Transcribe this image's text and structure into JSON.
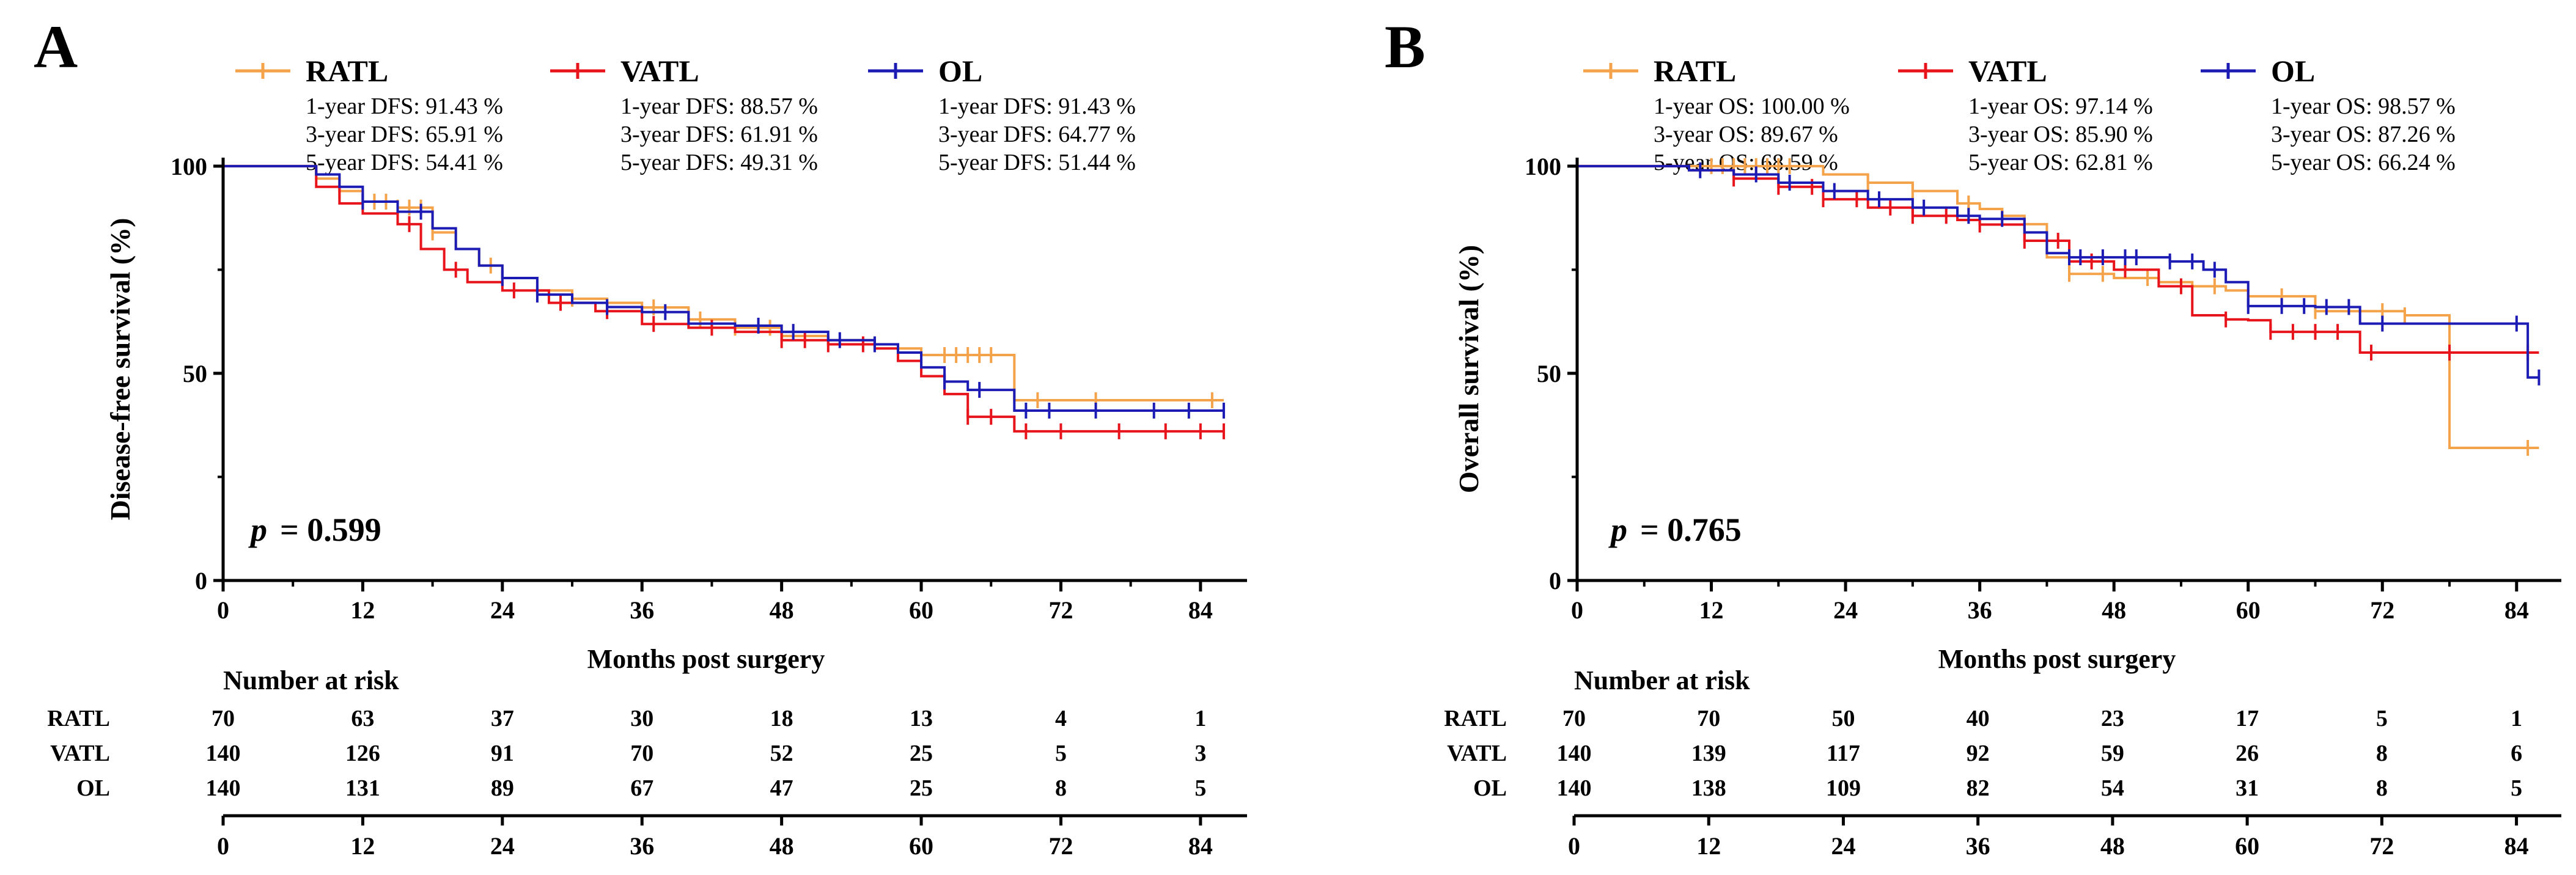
{
  "colors": {
    "RATL": "#F5A34B",
    "VATL": "#E8141C",
    "OL": "#1C1CB4"
  },
  "chart_data": [
    {
      "type": "line",
      "panel": "A",
      "xlabel": "Months post surgery",
      "ylabel": "Disease-free survival (%)",
      "xlim": [
        0,
        90
      ],
      "ylim": [
        0,
        105
      ],
      "xticks": [
        "0",
        "12",
        "24",
        "36",
        "48",
        "60",
        "72",
        "84"
      ],
      "yticks": [
        "0",
        "50",
        "100"
      ],
      "pvalue_label": "p",
      "pvalue": "= 0.599",
      "series": [
        {
          "name": "RATL",
          "stats": [
            "1-year DFS: 91.43 %",
            "3-year DFS: 65.91 %",
            "5-year DFS: 54.41 %"
          ],
          "points": [
            [
              0,
              100
            ],
            [
              6,
              100
            ],
            [
              8,
              97
            ],
            [
              10,
              94
            ],
            [
              12,
              91.43
            ],
            [
              15,
              90
            ],
            [
              18,
              84
            ],
            [
              20,
              80
            ],
            [
              22,
              76
            ],
            [
              24,
              73
            ],
            [
              27,
              70
            ],
            [
              30,
              68
            ],
            [
              33,
              67
            ],
            [
              36,
              65.91
            ],
            [
              40,
              63
            ],
            [
              44,
              61
            ],
            [
              48,
              59
            ],
            [
              52,
              58
            ],
            [
              56,
              57
            ],
            [
              58,
              56
            ],
            [
              60,
              54.41
            ],
            [
              67,
              54.41
            ],
            [
              68,
              43.5
            ],
            [
              86,
              43.5
            ]
          ],
          "censor": [
            10,
            12,
            13,
            14,
            15,
            16,
            17,
            18,
            23,
            30,
            37,
            41,
            44,
            47,
            62,
            63,
            64,
            65,
            66,
            70,
            75,
            85
          ]
        },
        {
          "name": "VATL",
          "stats": [
            "1-year DFS: 88.57 %",
            "3-year DFS: 61.91 %",
            "5-year DFS: 49.31 %"
          ],
          "points": [
            [
              0,
              100
            ],
            [
              6,
              100
            ],
            [
              8,
              95
            ],
            [
              10,
              91
            ],
            [
              12,
              88.57
            ],
            [
              15,
              86
            ],
            [
              17,
              80
            ],
            [
              19,
              75
            ],
            [
              21,
              72
            ],
            [
              24,
              70
            ],
            [
              28,
              67
            ],
            [
              32,
              65
            ],
            [
              36,
              61.91
            ],
            [
              40,
              61
            ],
            [
              44,
              60
            ],
            [
              48,
              58
            ],
            [
              52,
              57
            ],
            [
              56,
              56
            ],
            [
              58,
              53
            ],
            [
              60,
              49.31
            ],
            [
              62,
              45
            ],
            [
              64,
              39.5
            ],
            [
              67,
              39.5
            ],
            [
              68,
              36
            ],
            [
              86,
              36
            ]
          ],
          "censor": [
            16,
            20,
            25,
            29,
            33,
            37,
            42,
            48,
            50,
            52,
            55,
            64,
            66,
            69,
            72,
            77,
            81,
            84,
            86
          ]
        },
        {
          "name": "OL",
          "stats": [
            "1-year DFS: 91.43 %",
            "3-year DFS: 64.77 %",
            "5-year DFS: 51.44 %"
          ],
          "points": [
            [
              0,
              100
            ],
            [
              6,
              100
            ],
            [
              8,
              98
            ],
            [
              10,
              95
            ],
            [
              12,
              91.43
            ],
            [
              15,
              89
            ],
            [
              18,
              85
            ],
            [
              20,
              80
            ],
            [
              22,
              76
            ],
            [
              24,
              73
            ],
            [
              27,
              69
            ],
            [
              30,
              67
            ],
            [
              33,
              66
            ],
            [
              36,
              64.77
            ],
            [
              40,
              62
            ],
            [
              44,
              61.5
            ],
            [
              48,
              60
            ],
            [
              52,
              58
            ],
            [
              56,
              57
            ],
            [
              58,
              55
            ],
            [
              60,
              51.44
            ],
            [
              62,
              48
            ],
            [
              64,
              46
            ],
            [
              67,
              46
            ],
            [
              68,
              41
            ],
            [
              86,
              41
            ]
          ],
          "censor": [
            12,
            17,
            24,
            27,
            33,
            38,
            46,
            49,
            53,
            56,
            62,
            65,
            69,
            71,
            75,
            80,
            83,
            86
          ]
        }
      ],
      "risk_table": {
        "title": "Number at risk",
        "rows": [
          {
            "name": "RATL",
            "values": [
              "70",
              "63",
              "37",
              "30",
              "18",
              "13",
              "4",
              "1"
            ]
          },
          {
            "name": "VATL",
            "values": [
              "140",
              "126",
              "91",
              "70",
              "52",
              "25",
              "5",
              "3"
            ]
          },
          {
            "name": "OL",
            "values": [
              "140",
              "131",
              "89",
              "67",
              "47",
              "25",
              "8",
              "5"
            ]
          }
        ],
        "xticks": [
          "0",
          "12",
          "24",
          "36",
          "48",
          "60",
          "72",
          "84"
        ]
      }
    },
    {
      "type": "line",
      "panel": "B",
      "xlabel": "Months post surgery",
      "ylabel": "Overall survival (%)",
      "xlim": [
        0,
        90
      ],
      "ylim": [
        0,
        105
      ],
      "xticks": [
        "0",
        "12",
        "24",
        "36",
        "48",
        "60",
        "72",
        "84"
      ],
      "yticks": [
        "0",
        "50",
        "100"
      ],
      "pvalue_label": "p",
      "pvalue": "= 0.765",
      "series": [
        {
          "name": "RATL",
          "stats": [
            "1-year OS: 100.00 %",
            "3-year OS: 89.67 %",
            "5-year OS: 68.59 %"
          ],
          "points": [
            [
              0,
              100
            ],
            [
              20,
              100
            ],
            [
              22,
              98
            ],
            [
              26,
              96
            ],
            [
              30,
              94
            ],
            [
              34,
              91
            ],
            [
              36,
              89.67
            ],
            [
              38,
              88
            ],
            [
              40,
              86
            ],
            [
              42,
              78
            ],
            [
              44,
              74
            ],
            [
              48,
              73
            ],
            [
              52,
              72
            ],
            [
              55,
              71
            ],
            [
              58,
              70
            ],
            [
              60,
              68.59
            ],
            [
              66,
              65
            ],
            [
              74,
              64
            ],
            [
              78,
              32
            ],
            [
              86,
              32
            ]
          ],
          "censor": [
            12,
            13,
            14,
            15,
            16,
            17,
            18,
            19,
            26,
            30,
            35,
            38,
            44,
            47,
            51,
            57,
            63,
            66,
            72,
            74,
            85
          ]
        },
        {
          "name": "VATL",
          "stats": [
            "1-year OS: 97.14 %",
            "3-year OS: 85.90 %",
            "5-year OS: 62.81 %"
          ],
          "points": [
            [
              0,
              100
            ],
            [
              6,
              100
            ],
            [
              10,
              99
            ],
            [
              14,
              97
            ],
            [
              18,
              95
            ],
            [
              22,
              92
            ],
            [
              26,
              90
            ],
            [
              30,
              88
            ],
            [
              34,
              87
            ],
            [
              36,
              85.9
            ],
            [
              40,
              82
            ],
            [
              44,
              77
            ],
            [
              48,
              75
            ],
            [
              52,
              71
            ],
            [
              55,
              64
            ],
            [
              58,
              63
            ],
            [
              60,
              62.81
            ],
            [
              62,
              60
            ],
            [
              70,
              55
            ],
            [
              86,
              55
            ]
          ],
          "censor": [
            14,
            18,
            21,
            22,
            25,
            28,
            30,
            33,
            36,
            40,
            43,
            46,
            49,
            54,
            58,
            62,
            64,
            66,
            68,
            71,
            78,
            85
          ]
        },
        {
          "name": "OL",
          "stats": [
            "1-year OS: 98.57 %",
            "3-year OS: 87.26 %",
            "5-year OS: 66.24 %"
          ],
          "points": [
            [
              0,
              100
            ],
            [
              6,
              100
            ],
            [
              10,
              99
            ],
            [
              14,
              98
            ],
            [
              18,
              96
            ],
            [
              22,
              94
            ],
            [
              26,
              92
            ],
            [
              30,
              90
            ],
            [
              34,
              88
            ],
            [
              36,
              87.26
            ],
            [
              40,
              84
            ],
            [
              42,
              79
            ],
            [
              44,
              78
            ],
            [
              48,
              78
            ],
            [
              53,
              77
            ],
            [
              56,
              75
            ],
            [
              58,
              72
            ],
            [
              60,
              66.24
            ],
            [
              66,
              66
            ],
            [
              70,
              62
            ],
            [
              84,
              62
            ],
            [
              85,
              49
            ],
            [
              86,
              49
            ]
          ],
          "censor": [
            11,
            16,
            19,
            23,
            27,
            31,
            35,
            38,
            44,
            45,
            47,
            49,
            50,
            53,
            55,
            57,
            60,
            63,
            65,
            67,
            69,
            72,
            84,
            86
          ]
        }
      ],
      "risk_table": {
        "title": "Number at risk",
        "rows": [
          {
            "name": "RATL",
            "values": [
              "70",
              "70",
              "50",
              "40",
              "23",
              "17",
              "5",
              "1"
            ]
          },
          {
            "name": "VATL",
            "values": [
              "140",
              "139",
              "117",
              "92",
              "59",
              "26",
              "8",
              "6"
            ]
          },
          {
            "name": "OL",
            "values": [
              "140",
              "138",
              "109",
              "82",
              "54",
              "31",
              "8",
              "5"
            ]
          }
        ],
        "xticks": [
          "0",
          "12",
          "24",
          "36",
          "48",
          "60",
          "72",
          "84"
        ]
      }
    }
  ]
}
